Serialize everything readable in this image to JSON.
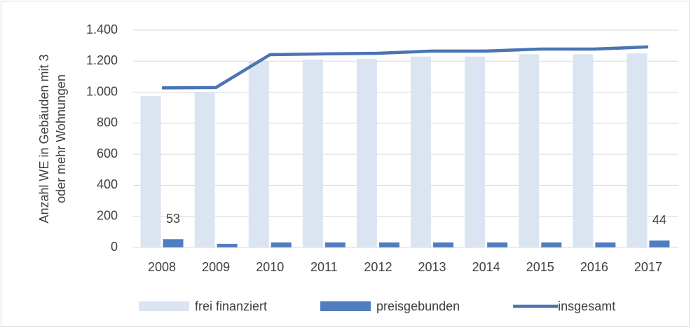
{
  "chart_data": {
    "type": "bar_line",
    "y_label": [
      "Anzahl WE in Gebäuden mit 3",
      "oder mehr Wohnungen"
    ],
    "categories": [
      "2008",
      "2009",
      "2010",
      "2011",
      "2012",
      "2013",
      "2014",
      "2015",
      "2016",
      "2017"
    ],
    "series": [
      {
        "name": "frei finanziert",
        "type": "bar",
        "color": "#dae5f1",
        "values": [
          975,
          1000,
          1200,
          1210,
          1215,
          1230,
          1230,
          1245,
          1245,
          1250
        ]
      },
      {
        "name": "preisgebunden",
        "type": "bar",
        "color": "#4f7dc0",
        "values": [
          53,
          23,
          32,
          32,
          32,
          32,
          32,
          32,
          32,
          44
        ],
        "value_labels": [
          "53",
          null,
          null,
          null,
          null,
          null,
          null,
          null,
          null,
          "44"
        ]
      },
      {
        "name": "insgesamt",
        "type": "line",
        "color": "#4a74b3",
        "values": [
          1028,
          1030,
          1242,
          1247,
          1251,
          1265,
          1265,
          1278,
          1278,
          1292
        ]
      }
    ],
    "ylim": [
      0,
      1400
    ],
    "yticks": [
      0,
      200,
      400,
      600,
      800,
      {
        "value": 1000,
        "label": "1.000"
      },
      {
        "value": 1200,
        "label": "1.200"
      },
      {
        "value": 1400,
        "label": "1.400"
      }
    ],
    "grid": true,
    "legend": "bottom"
  }
}
